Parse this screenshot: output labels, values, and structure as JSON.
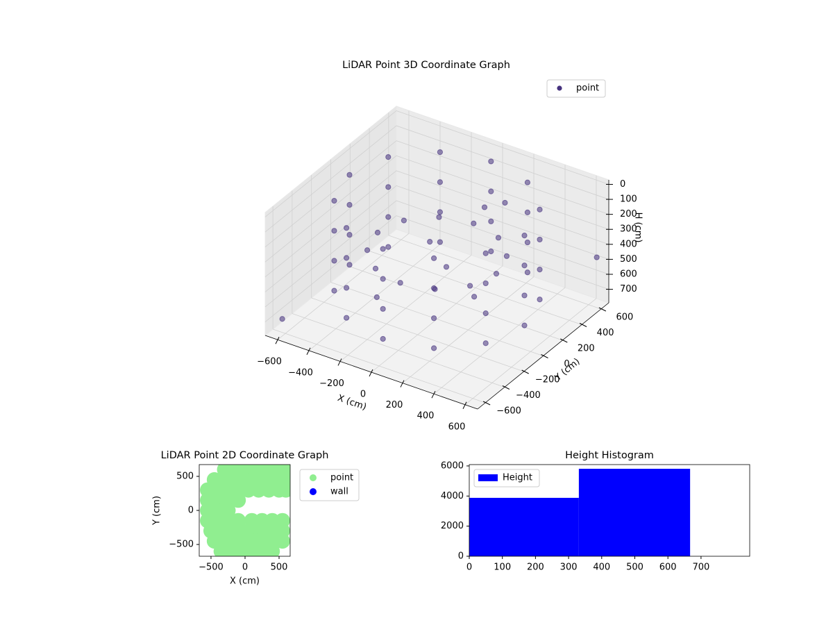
{
  "chart_data": [
    {
      "type": "scatter3d",
      "title": "LiDAR Point 3D Coordinate Graph",
      "xlabel": "X (cm)",
      "ylabel": "Y (cm)",
      "zlabel": "H (cm)",
      "xlim": [
        -680,
        680
      ],
      "ylim": [
        -680,
        680
      ],
      "zlim": [
        -30,
        790
      ],
      "zinvert": true,
      "xticks": [
        {
          "value": -600,
          "label": "−600"
        },
        {
          "value": -400,
          "label": "−400"
        },
        {
          "value": -200,
          "label": "−200"
        },
        0,
        200,
        400,
        600
      ],
      "yticks": [
        {
          "value": -600,
          "label": "−600"
        },
        {
          "value": -400,
          "label": "−400"
        },
        {
          "value": -200,
          "label": "−200"
        },
        0,
        200,
        400,
        600
      ],
      "zticks": [
        0,
        100,
        200,
        300,
        400,
        500,
        600,
        700
      ],
      "legend": "upper right",
      "series": [
        {
          "name": "point",
          "color": "#46327e",
          "x": [
            560,
            485,
            280,
            0,
            -280,
            -485,
            -560,
            -485,
            -280,
            0,
            280,
            485,
            560,
            485,
            280,
            0,
            -280,
            -485,
            -560,
            -485,
            -280,
            0,
            280,
            485,
            560,
            485,
            280,
            0,
            -280,
            -485,
            -560,
            -485,
            -280,
            0,
            280,
            485,
            560,
            485,
            280,
            0,
            -280,
            -485,
            -560,
            -485,
            -280,
            0,
            280,
            485,
            380,
            329,
            190,
            0,
            -190,
            -329,
            -380,
            -329,
            -190,
            0,
            190,
            329,
            150,
            250,
            60,
            -120,
            300,
            -200,
            -620,
            640
          ],
          "y": [
            0,
            280,
            485,
            560,
            485,
            280,
            0,
            -280,
            -485,
            -560,
            -485,
            -280,
            0,
            280,
            485,
            560,
            485,
            280,
            0,
            -280,
            -485,
            -560,
            -485,
            -280,
            0,
            280,
            485,
            560,
            485,
            280,
            0,
            -280,
            -485,
            -560,
            -485,
            -280,
            0,
            280,
            485,
            560,
            485,
            280,
            0,
            -280,
            -485,
            -560,
            -485,
            -280,
            0,
            190,
            329,
            380,
            329,
            190,
            0,
            -190,
            -329,
            -380,
            -329,
            -190,
            250,
            300,
            0,
            120,
            -100,
            -300,
            -600,
            620
          ],
          "z": [
            30,
            30,
            30,
            30,
            30,
            30,
            30,
            30,
            30,
            30,
            30,
            30,
            230,
            230,
            230,
            230,
            230,
            230,
            230,
            230,
            230,
            230,
            230,
            230,
            430,
            430,
            430,
            430,
            430,
            430,
            430,
            430,
            430,
            430,
            430,
            430,
            630,
            630,
            630,
            630,
            630,
            630,
            630,
            630,
            630,
            630,
            630,
            630,
            350,
            350,
            350,
            350,
            350,
            350,
            350,
            350,
            350,
            350,
            350,
            350,
            120,
            80,
            420,
            380,
            480,
            560,
            700,
            470
          ]
        }
      ]
    },
    {
      "type": "scatter",
      "title": "LiDAR Point 2D Coordinate Graph",
      "xlabel": "X (cm)",
      "ylabel": "Y (cm)",
      "xlim": [
        -673,
        663
      ],
      "ylim": [
        -673,
        673
      ],
      "xticks": [
        {
          "value": -500,
          "label": "−500"
        },
        0,
        500
      ],
      "yticks": [
        {
          "value": -500,
          "label": "−500"
        },
        0,
        500
      ],
      "legend": "upper right outside",
      "series": [
        {
          "name": "point",
          "color": "#90ee90",
          "x": [
            -300,
            -150,
            0,
            150,
            300,
            450,
            600,
            -450,
            -300,
            -150,
            0,
            150,
            300,
            450,
            600,
            -550,
            -400,
            -250,
            -100,
            50,
            200,
            350,
            500,
            600,
            -550,
            -400,
            -250,
            -100,
            -550,
            -400,
            -250,
            -550,
            -400,
            -250,
            -100,
            100,
            250,
            400,
            550,
            -500,
            -350,
            -200,
            -50,
            100,
            250,
            400,
            550,
            -450,
            -300,
            -150,
            0,
            150,
            300,
            450,
            550,
            -350,
            -200,
            -50,
            100,
            250,
            400
          ],
          "y": [
            600,
            600,
            600,
            600,
            600,
            600,
            600,
            450,
            450,
            450,
            450,
            450,
            450,
            450,
            450,
            300,
            300,
            300,
            300,
            300,
            300,
            300,
            300,
            300,
            150,
            150,
            150,
            150,
            0,
            0,
            0,
            -150,
            -150,
            -150,
            -150,
            -150,
            -150,
            -150,
            -150,
            -300,
            -300,
            -300,
            -300,
            -300,
            -300,
            -300,
            -300,
            -450,
            -450,
            -450,
            -450,
            -450,
            -450,
            -450,
            -450,
            -600,
            -600,
            -600,
            -600,
            -600,
            -600
          ]
        },
        {
          "name": "wall",
          "color": "#0000ff",
          "x": [],
          "y": []
        }
      ]
    },
    {
      "type": "histogram",
      "title": "Height Histogram",
      "name": "Height",
      "color": "#0000ff",
      "bins": [
        0,
        331,
        667
      ],
      "values": [
        3880,
        5810
      ],
      "xlim": [
        0,
        847
      ],
      "ylim": [
        0,
        6090
      ],
      "xticks": [
        0,
        100,
        200,
        300,
        400,
        500,
        600,
        700
      ],
      "yticks": [
        0,
        2000,
        4000,
        6000
      ],
      "legend": "upper left"
    }
  ]
}
